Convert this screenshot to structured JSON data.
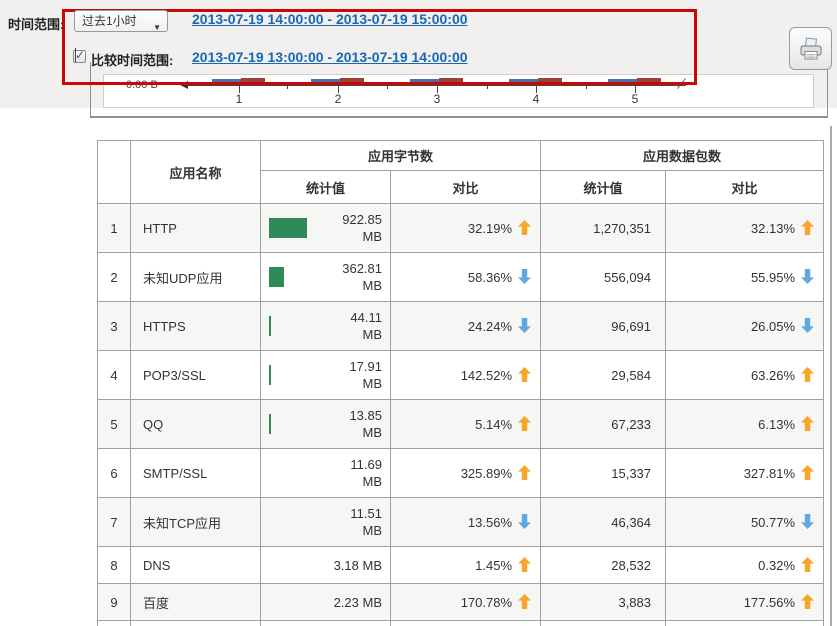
{
  "colors": {
    "accent_red_box": "#CC0505",
    "link_blue": "#1768B5",
    "green_bar": "#2E8B57",
    "up_arrow_orange": "#F7A52B",
    "down_arrow_blue": "#5FA8E0",
    "chart_series_current_blue": "#4572A7",
    "chart_series_compare_red": "#9E3F38",
    "table_border": "#A0A0A0",
    "row_stripe": "#F6F6F5",
    "topbar_bg": "#F1F0EE"
  },
  "toolbar": {
    "time_range_label": "时间范围:",
    "time_range_selected": "过去1小时",
    "current_range_link": "2013-07-19 14:00:00 - 2013-07-19 15:00:00",
    "compare_checkbox_checked": true,
    "compare_label": "比较时间范围:",
    "compare_range_link": "2013-07-19 13:00:00 - 2013-07-19 14:00:00",
    "print_icon": "printer-icon",
    "checkmark": "✓",
    "chevron": "▼"
  },
  "chart": {
    "y_axis_label": "0.00 B",
    "x_tick_labels": [
      "1",
      "2",
      "3",
      "4",
      "5"
    ],
    "series": [
      {
        "name": "current",
        "color": "#4572A7"
      },
      {
        "name": "compare",
        "color": "#9E3F38"
      }
    ]
  },
  "table": {
    "headers": {
      "rank": "",
      "name": "应用名称",
      "bytes_group": "应用字节数",
      "packets_group": "应用数据包数",
      "stat": "统计值",
      "compare": "对比"
    },
    "rows": [
      {
        "rank": "1",
        "name": "HTTP",
        "bytes": "922.85\nMB",
        "bytes_mb": 922.85,
        "bytes_pct": "32.19%",
        "bytes_dir": "up",
        "packets": "1,270,351",
        "packets_pct": "32.13%",
        "packets_dir": "up"
      },
      {
        "rank": "2",
        "name": "未知UDP应用",
        "bytes": "362.81\nMB",
        "bytes_mb": 362.81,
        "bytes_pct": "58.36%",
        "bytes_dir": "down",
        "packets": "556,094",
        "packets_pct": "55.95%",
        "packets_dir": "down"
      },
      {
        "rank": "3",
        "name": "HTTPS",
        "bytes": "44.11\nMB",
        "bytes_mb": 44.11,
        "bytes_pct": "24.24%",
        "bytes_dir": "down",
        "packets": "96,691",
        "packets_pct": "26.05%",
        "packets_dir": "down"
      },
      {
        "rank": "4",
        "name": "POP3/SSL",
        "bytes": "17.91\nMB",
        "bytes_mb": 17.91,
        "bytes_pct": "142.52%",
        "bytes_dir": "up",
        "packets": "29,584",
        "packets_pct": "63.26%",
        "packets_dir": "up"
      },
      {
        "rank": "5",
        "name": "QQ",
        "bytes": "13.85\nMB",
        "bytes_mb": 13.85,
        "bytes_pct": "5.14%",
        "bytes_dir": "up",
        "packets": "67,233",
        "packets_pct": "6.13%",
        "packets_dir": "up"
      },
      {
        "rank": "6",
        "name": "SMTP/SSL",
        "bytes": "11.69\nMB",
        "bytes_mb": 11.69,
        "bytes_pct": "325.89%",
        "bytes_dir": "up",
        "packets": "15,337",
        "packets_pct": "327.81%",
        "packets_dir": "up"
      },
      {
        "rank": "7",
        "name": "未知TCP应用",
        "bytes": "11.51\nMB",
        "bytes_mb": 11.51,
        "bytes_pct": "13.56%",
        "bytes_dir": "down",
        "packets": "46,364",
        "packets_pct": "50.77%",
        "packets_dir": "down"
      },
      {
        "rank": "8",
        "name": "DNS",
        "bytes": "3.18 MB",
        "bytes_mb": 3.18,
        "bytes_pct": "1.45%",
        "bytes_dir": "up",
        "packets": "28,532",
        "packets_pct": "0.32%",
        "packets_dir": "up"
      },
      {
        "rank": "9",
        "name": "百度",
        "bytes": "2.23 MB",
        "bytes_mb": 2.23,
        "bytes_pct": "170.78%",
        "bytes_dir": "up",
        "packets": "3,883",
        "packets_pct": "177.56%",
        "packets_dir": "up"
      }
    ]
  }
}
